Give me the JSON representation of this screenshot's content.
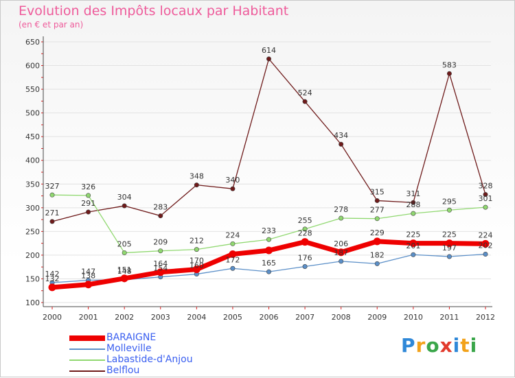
{
  "header": {
    "title": "Evolution des Impôts locaux par Habitant",
    "subtitle": "(en € et par an)"
  },
  "logo": {
    "text": "Proxiti"
  },
  "chart_data": {
    "type": "line",
    "title": "Evolution des Impôts locaux par Habitant",
    "subtitle": "(en € et par an)",
    "xlabel": "",
    "ylabel": "",
    "categories": [
      "2000",
      "2001",
      "2002",
      "2003",
      "2004",
      "2005",
      "2006",
      "2007",
      "2008",
      "2009",
      "2010",
      "2011",
      "2012"
    ],
    "ylim": [
      100,
      650
    ],
    "yticks": [
      100,
      150,
      200,
      250,
      300,
      350,
      400,
      450,
      500,
      550,
      600,
      650
    ],
    "grid": "horizontal",
    "legend_position": "bottom-left",
    "series": [
      {
        "name": "BARAIGNE",
        "color": "#ee0000",
        "values": [
          132,
          138,
          151,
          164,
          170,
          202,
          210,
          228,
          206,
          229,
          225,
          225,
          224
        ]
      },
      {
        "name": "Molleville",
        "color": "#5b8fc8",
        "values": [
          142,
          147,
          148,
          154,
          160,
          172,
          165,
          176,
          187,
          182,
          201,
          197,
          202
        ]
      },
      {
        "name": "Labastide-d'Anjou",
        "color": "#90d870",
        "values": [
          327,
          326,
          205,
          209,
          212,
          224,
          233,
          255,
          278,
          277,
          288,
          295,
          301
        ]
      },
      {
        "name": "Belflou",
        "color": "#6e1a1a",
        "values": [
          271,
          291,
          304,
          283,
          348,
          340,
          614,
          524,
          434,
          315,
          311,
          583,
          328
        ]
      }
    ],
    "shown_labels": {
      "BARAIGNE": [
        "132",
        "138",
        "151",
        "164",
        "170",
        "",
        "",
        "228",
        "206",
        "229",
        "225",
        "225",
        "224"
      ],
      "Molleville": [
        "142",
        "147",
        "148",
        "154",
        "160",
        "172",
        "165",
        "176",
        "187",
        "182",
        "201",
        "197",
        "202"
      ],
      "Labastide-d'Anjou": [
        "327",
        "326",
        "205",
        "209",
        "212",
        "224",
        "233",
        "255",
        "278",
        "277",
        "288",
        "295",
        "301"
      ],
      "Belflou": [
        "271",
        "291",
        "304",
        "283",
        "348",
        "340",
        "614",
        "524",
        "434",
        "315",
        "311",
        "583",
        "328"
      ]
    }
  }
}
